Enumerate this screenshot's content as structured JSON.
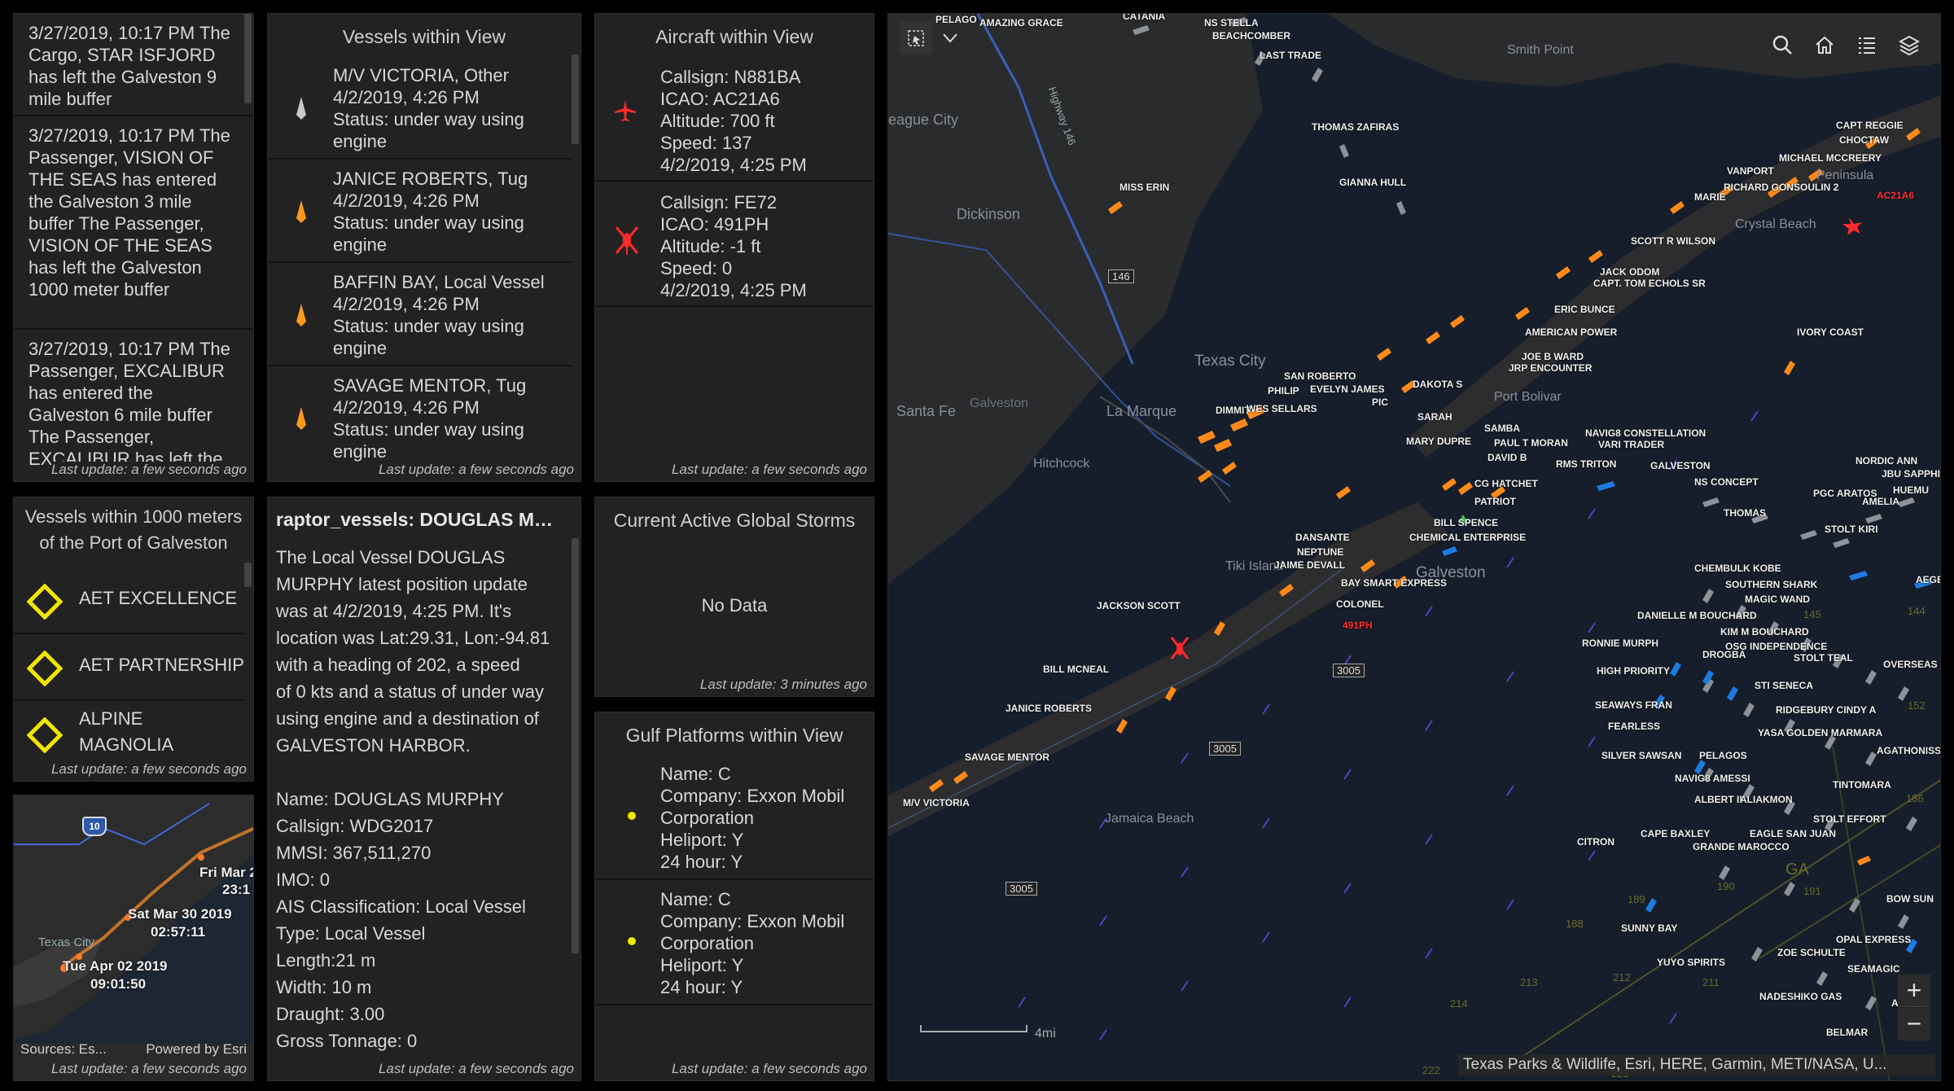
{
  "events": {
    "items": [
      "3/27/2019, 10:17 PM  The Cargo, STAR ISFJORD has left the Galveston 9 mile buffer",
      "3/27/2019, 10:17 PM  The Passenger, VISION OF THE SEAS has entered the Galveston 3 mile buffer The Passenger, VISION OF THE SEAS has left the Galveston 1000 meter buffer",
      "3/27/2019, 10:17 PM  The Passenger, EXCALIBUR has entered the Galveston 6 mile buffer The Passenger, EXCALIBUR has left the"
    ],
    "last_update": "Last update: a few seconds ago"
  },
  "vessels": {
    "title": "Vessels within View",
    "items": [
      {
        "l1": "M/V VICTORIA, Other",
        "l2": "4/2/2019, 4:26 PM",
        "l3": "Status: under way using",
        "l4": "engine",
        "color": "#c9c9c9"
      },
      {
        "l1": "JANICE ROBERTS, Tug",
        "l2": "4/2/2019, 4:26 PM",
        "l3": "Status: under way using",
        "l4": "engine",
        "color": "#ff9a1f"
      },
      {
        "l1": "BAFFIN BAY, Local Vessel",
        "l2": "4/2/2019, 4:26 PM",
        "l3": "Status: under way using",
        "l4": "engine",
        "color": "#ff9a1f"
      },
      {
        "l1": "SAVAGE MENTOR, Tug",
        "l2": "4/2/2019, 4:26 PM",
        "l3": "Status: under way using",
        "l4": "engine",
        "color": "#ff9a1f"
      }
    ],
    "last_update": "Last update: a few seconds ago"
  },
  "aircraft": {
    "title": "Aircraft within View",
    "items": [
      {
        "l1": "Callsign: N881BA",
        "l2": "ICAO: AC21A6",
        "l3": "Altitude: 700 ft",
        "l4": "Speed: 137",
        "l5": "4/2/2019, 4:25 PM"
      },
      {
        "l1": "Callsign: FE72",
        "l2": "ICAO: 491PH",
        "l3": "Altitude: -1 ft",
        "l4": "Speed: 0",
        "l5": "4/2/2019, 4:25 PM"
      }
    ],
    "last_update": "Last update: a few seconds ago"
  },
  "port": {
    "title_l1": "Vessels within 1000 meters",
    "title_l2": "of the Port of Galveston",
    "items": [
      {
        "l1": "AET EXCELLENCE",
        "l2": ""
      },
      {
        "l1": "AET PARTNERSHIP",
        "l2": ""
      },
      {
        "l1": "ALPINE",
        "l2": "MAGNOLIA"
      }
    ],
    "last_update": "Last update: a few seconds ago"
  },
  "details": {
    "title": "raptor_vessels: DOUGLAS MURPHY",
    "summary": [
      "The Local Vessel DOUGLAS",
      "MURPHY latest position update",
      "was at 4/2/2019, 4:25 PM.  It's",
      "location was Lat:29.31, Lon:-94.81",
      "with a heading of 202, a speed",
      "of 0 kts and a status of under way",
      "using engine and a destination of",
      "GALVESTON HARBOR."
    ],
    "fields": [
      "Name: DOUGLAS MURPHY",
      "Callsign: WDG2017",
      "MMSI: 367,511,270",
      "IMO: 0",
      "AIS Classification: Local Vessel",
      "Type: Local Vessel",
      "Length:21 m",
      "Width: 10 m",
      "Draught: 3.00",
      "Gross Tonnage: 0"
    ],
    "last_update": "Last update: a few seconds ago"
  },
  "storms": {
    "title": "Current Active Global Storms",
    "empty": "No Data",
    "last_update": "Last update: 3 minutes ago"
  },
  "platforms": {
    "title": "Gulf Platforms within View",
    "items": [
      {
        "l1": "Name: C",
        "l2": "Company: Exxon Mobil",
        "l3": "Corporation",
        "l4": "Heliport: Y",
        "l5": "24 hour: Y"
      },
      {
        "l1": "Name: C",
        "l2": "Company: Exxon Mobil",
        "l3": "Corporation",
        "l4": "Heliport: Y",
        "l5": "24 hour: Y"
      }
    ],
    "last_update": "Last update: a few seconds ago"
  },
  "minimap": {
    "route_sign": "10",
    "labels": [
      "Fri Mar 2",
      "23:1",
      "Sat Mar 30 2019",
      "02:57:11",
      "Tue Apr 02 2019",
      "09:01:50"
    ],
    "city": "Texas City",
    "sources": "Sources: Es...",
    "powered": "Powered by Esri",
    "last_update": "Last update: a few seconds ago"
  },
  "map": {
    "places": {
      "league_city": "eague City",
      "dickinson": "Dickinson",
      "texas_city": "Texas City",
      "la_marque": "La Marque",
      "santa_fe": "Santa Fe",
      "galveston_w": "Galveston",
      "hitchcock": "Hitchcock",
      "tiki_island": "Tiki Island",
      "galveston": "Galveston",
      "jamaica_beach": "Jamaica Beach",
      "port_bolivar": "Port Bolivar",
      "crystal_beach": "Crystal Beach",
      "peninsula": "Peninsula",
      "smith_point": "Smith Point",
      "highway": "Highway 146",
      "r146": "146",
      "r3005a": "3005",
      "r3005b": "3005",
      "r3005c": "3005",
      "ga": "GA"
    },
    "vessel_labels": [
      "NS STELLA",
      "BEACHCOMBER",
      "LAST TRADE",
      "THOMAS ZAFIRAS",
      "GIANNA HULL",
      "MISS ERIN",
      "CAPT REGGIE",
      "CHOCTAW",
      "MICHAEL MCCREERY",
      "VANPORT",
      "RICHARD GONSOULIN 2",
      "MARIE",
      "AC21A6",
      "SCOTT R WILSON",
      "JACK ODOM",
      "CAPT. TOM ECHOLS SR",
      "ERIC BUNCE",
      "AMERICAN POWER",
      "IVORY COAST",
      "JOE B WARD",
      "JRP ENCOUNTER",
      "SAN ROBERTO",
      "PHILIP",
      "EVELYN JAMES",
      "PIC",
      "DAKOTA S",
      "DIMMIT",
      "WES SELLARS",
      "SARAH",
      "SAMBA",
      "NAVIG8 CONSTELLATION",
      "MARY DUPRE",
      "PAUL T MORAN",
      "VARI TRADER",
      "DAVID B",
      "RMS TRITON",
      "GALVESTON",
      "NORDIC ANN",
      "JBU SAPPHI",
      "CG HATCHET",
      "NS CONCEPT",
      "HUEMU",
      "PGC ARATOS",
      "AMELIA",
      "PATRIOT",
      "THOMAS",
      "BILL SPENCE",
      "STOLT KIRI",
      "DANSANTE",
      "CHEMICAL ENTERPRISE",
      "NEPTUNE",
      "JAIME DEVALL",
      "CHEMBULK KOBE",
      "AEGE",
      "BAY SMART EXPRESS",
      "SOUTHERN SHARK",
      "COLONEL",
      "MAGIC WAND",
      "JACKSON SCOTT",
      "DANIELLE M BOUCHARD",
      "491PH",
      "KIM M BOUCHARD",
      "RONNIE MURPH",
      "OSG INDEPENDENCE",
      "STOLT TEAL",
      "DROGBA",
      "BILL MCNEAL",
      "HIGH PRIORITY",
      "OVERSEAS N",
      "STI SENECA",
      "JANICE ROBERTS",
      "SEAWAYS FRAN",
      "RIDGEBURY CINDY A",
      "FEARLESS",
      "YASA GOLDEN MARMARA",
      "AGATHONISSO",
      "SILVER SAWSAN",
      "PELAGOS",
      "SAVAGE MENTOR",
      "NAVIG8 AMESSI",
      "TINTOMARA",
      "ALBERT II",
      "ALIAKMON",
      "M/V VICTORIA",
      "STOLT EFFORT",
      "CITRON",
      "CAPE BAXLEY",
      "EAGLE SAN JUAN",
      "GRANDE MAROCCO",
      "BOW SUN",
      "SUNNY BAY",
      "OPAL EXPRESS",
      "ZOE SCHULTE",
      "YUYO SPIRITS",
      "SEAMAGIC",
      "NADESHIKO GAS",
      "ALASK",
      "BELMAR",
      "PELAGO",
      "AMAZING GRACE",
      "CATANIA"
    ],
    "grid_numbers": [
      "145",
      "144",
      "152",
      "186",
      "189",
      "190",
      "191",
      "188",
      "213",
      "212",
      "211",
      "214",
      "222",
      "223"
    ],
    "scale": "4mi",
    "attribution": "Texas Parks & Wildlife, Esri, HERE, Garmin, METI/NASA, U...",
    "zoom_in": "+",
    "zoom_out": "−"
  }
}
